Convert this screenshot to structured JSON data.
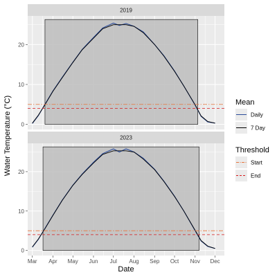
{
  "chart_data": {
    "type": "line",
    "ylabel": "Water Temperature (°C)",
    "xlabel": "Date",
    "xlim": [
      "2000-02-23",
      "2000-12-15"
    ],
    "ylim": [
      -1.3,
      27.2
    ],
    "x_ticks": [
      {
        "date": "2000-03-01",
        "label": "Mar"
      },
      {
        "date": "2000-04-01",
        "label": "Apr"
      },
      {
        "date": "2000-05-01",
        "label": "May"
      },
      {
        "date": "2000-06-01",
        "label": "Jun"
      },
      {
        "date": "2000-07-01",
        "label": "Jul"
      },
      {
        "date": "2000-08-01",
        "label": "Aug"
      },
      {
        "date": "2000-09-01",
        "label": "Sep"
      },
      {
        "date": "2000-10-01",
        "label": "Oct"
      },
      {
        "date": "2000-11-01",
        "label": "Nov"
      },
      {
        "date": "2000-12-01",
        "label": "Dec"
      }
    ],
    "y_ticks": [
      0,
      10,
      20
    ],
    "grid": true,
    "colors": {
      "daily": "#2b4c9b",
      "seven_day": "#000000",
      "threshold_start": "#e8743b",
      "threshold_end": "#d7191c",
      "season_fill": "#bdbdbd",
      "panel_bg": "#ebebeb",
      "strip_bg": "#d9d9d9"
    },
    "panels": [
      {
        "label": "2019",
        "threshold_start": 5.0,
        "threshold_end": 4.0,
        "season_rect": {
          "start": "2000-03-20",
          "end": "2000-11-05",
          "top": 26.3
        },
        "series": [
          {
            "name": "Daily",
            "x": [
              "2000-03-01",
              "2000-03-10",
              "2000-03-20",
              "2000-04-01",
              "2000-04-15",
              "2000-05-01",
              "2000-05-15",
              "2000-06-01",
              "2000-06-15",
              "2000-07-01",
              "2000-07-10",
              "2000-07-20",
              "2000-08-01",
              "2000-08-15",
              "2000-09-01",
              "2000-09-15",
              "2000-10-01",
              "2000-10-15",
              "2000-11-01",
              "2000-11-10",
              "2000-11-20",
              "2000-12-01"
            ],
            "y": [
              0.2,
              2.2,
              5.0,
              8.4,
              11.8,
              15.6,
              18.8,
              21.8,
              24.2,
              25.4,
              24.8,
              25.3,
              24.6,
              23.2,
              20.0,
              17.2,
              13.4,
              9.6,
              4.8,
              2.0,
              0.6,
              0.3
            ]
          },
          {
            "name": "7 Day",
            "x": [
              "2000-03-01",
              "2000-03-10",
              "2000-03-20",
              "2000-04-01",
              "2000-04-15",
              "2000-05-01",
              "2000-05-15",
              "2000-06-01",
              "2000-06-15",
              "2000-07-01",
              "2000-07-10",
              "2000-07-20",
              "2000-08-01",
              "2000-08-15",
              "2000-09-01",
              "2000-09-15",
              "2000-10-01",
              "2000-10-15",
              "2000-11-01",
              "2000-11-10",
              "2000-11-20",
              "2000-12-01"
            ],
            "y": [
              0.3,
              2.3,
              4.9,
              8.3,
              11.7,
              15.5,
              18.7,
              21.6,
              24.0,
              25.0,
              25.0,
              25.0,
              24.6,
              23.0,
              20.0,
              17.1,
              13.3,
              9.6,
              4.9,
              2.1,
              0.7,
              0.3
            ]
          }
        ]
      },
      {
        "label": "2023",
        "threshold_start": 5.0,
        "threshold_end": 4.0,
        "season_rect": {
          "start": "2000-03-17",
          "end": "2000-11-07",
          "top": 26.3
        },
        "series": [
          {
            "name": "Daily",
            "x": [
              "2000-03-01",
              "2000-03-10",
              "2000-03-20",
              "2000-04-01",
              "2000-04-15",
              "2000-05-01",
              "2000-05-15",
              "2000-06-01",
              "2000-06-15",
              "2000-07-01",
              "2000-07-10",
              "2000-07-20",
              "2000-08-01",
              "2000-08-15",
              "2000-09-01",
              "2000-09-15",
              "2000-10-01",
              "2000-10-15",
              "2000-11-01",
              "2000-11-10",
              "2000-11-20",
              "2000-12-01"
            ],
            "y": [
              0.8,
              2.8,
              5.6,
              9.0,
              12.8,
              16.6,
              19.4,
              22.4,
              24.6,
              25.8,
              25.0,
              25.8,
              25.0,
              23.4,
              20.6,
              17.6,
              13.8,
              10.0,
              5.0,
              2.4,
              1.0,
              0.5
            ]
          },
          {
            "name": "7 Day",
            "x": [
              "2000-03-01",
              "2000-03-10",
              "2000-03-20",
              "2000-04-01",
              "2000-04-15",
              "2000-05-01",
              "2000-05-15",
              "2000-06-01",
              "2000-06-15",
              "2000-07-01",
              "2000-07-10",
              "2000-07-20",
              "2000-08-01",
              "2000-08-15",
              "2000-09-01",
              "2000-09-15",
              "2000-10-01",
              "2000-10-15",
              "2000-11-01",
              "2000-11-10",
              "2000-11-20",
              "2000-12-01"
            ],
            "y": [
              0.9,
              2.9,
              5.5,
              8.9,
              12.7,
              16.5,
              19.3,
              22.2,
              24.4,
              25.3,
              25.3,
              25.3,
              25.0,
              23.2,
              20.5,
              17.5,
              13.7,
              10.0,
              5.1,
              2.5,
              1.1,
              0.5
            ]
          }
        ]
      }
    ],
    "legends": [
      {
        "title": "Mean",
        "items": [
          {
            "name": "Daily",
            "style": "solid",
            "color_key": "daily"
          },
          {
            "name": "7 Day",
            "style": "solid",
            "color_key": "seven_day"
          }
        ]
      },
      {
        "title": "Threshold",
        "items": [
          {
            "name": "Start",
            "style": "dotdash",
            "color_key": "threshold_start"
          },
          {
            "name": "End",
            "style": "dashed",
            "color_key": "threshold_end"
          }
        ]
      }
    ],
    "legend_position": "right"
  }
}
